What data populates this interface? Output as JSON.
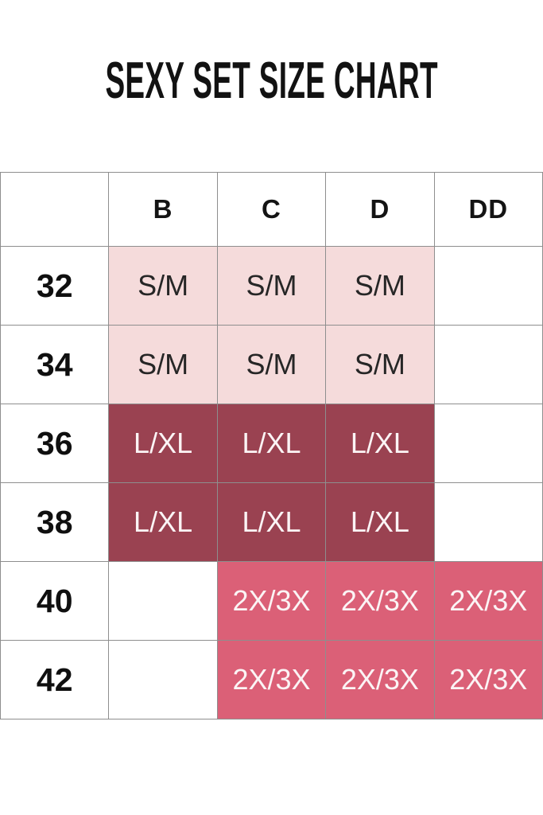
{
  "colors": {
    "title_text": "#121212",
    "header_text": "#141414",
    "label_text": "#0f0f0f",
    "cell_text_dark": "#262626",
    "cell_text_light": "#fbf4f5",
    "band_light_pink": "#f5dbdb",
    "band_maroon": "#9a4251",
    "band_rose": "#db6077",
    "grid_border": "#8e8e8e"
  },
  "chart_data": {
    "type": "table",
    "title": "SEXY SET SIZE CHART",
    "columns": [
      "",
      "B",
      "C",
      "D",
      "DD"
    ],
    "rows": [
      {
        "label": "32",
        "values": [
          "S/M",
          "S/M",
          "S/M",
          ""
        ],
        "styles": [
          "pink",
          "pink",
          "pink",
          "none"
        ]
      },
      {
        "label": "34",
        "values": [
          "S/M",
          "S/M",
          "S/M",
          ""
        ],
        "styles": [
          "pink",
          "pink",
          "pink",
          "none"
        ]
      },
      {
        "label": "36",
        "values": [
          "L/XL",
          "L/XL",
          "L/XL",
          ""
        ],
        "styles": [
          "maroon",
          "maroon",
          "maroon",
          "none"
        ]
      },
      {
        "label": "38",
        "values": [
          "L/XL",
          "L/XL",
          "L/XL",
          ""
        ],
        "styles": [
          "maroon",
          "maroon",
          "maroon",
          "none"
        ]
      },
      {
        "label": "40",
        "values": [
          "",
          "2X/3X",
          "2X/3X",
          "2X/3X"
        ],
        "styles": [
          "none",
          "rose",
          "rose",
          "rose"
        ]
      },
      {
        "label": "42",
        "values": [
          "",
          "2X/3X",
          "2X/3X",
          "2X/3X"
        ],
        "styles": [
          "none",
          "rose",
          "rose",
          "rose"
        ]
      }
    ]
  }
}
